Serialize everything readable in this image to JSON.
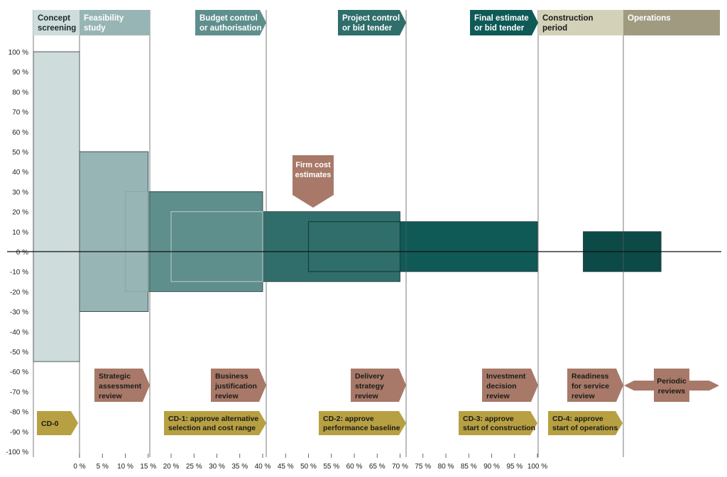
{
  "phases": [
    {
      "label": [
        "Concept",
        "screening"
      ],
      "color": "#cfdcdc",
      "text_color": "#1a2a2a"
    },
    {
      "label": [
        "Feasibility",
        "study"
      ],
      "color": "#97b5b5",
      "text_color": "#ffffff"
    },
    {
      "label": [
        "Budget control",
        "or authorisation"
      ],
      "color": "#5f8f8c",
      "text_color": "#ffffff"
    },
    {
      "label": [
        "Project control",
        "or bid tender"
      ],
      "color": "#2f6e6b",
      "text_color": "#ffffff"
    },
    {
      "label": [
        "Final estimate",
        "or bid tender"
      ],
      "color": "#0f5a57",
      "text_color": "#ffffff"
    },
    {
      "label": [
        "Construction",
        "period"
      ],
      "color": "#d3d1b8",
      "text_color": "#1a1a1a"
    },
    {
      "label": [
        "Operations"
      ],
      "color": "#a09a80",
      "text_color": "#ffffff"
    }
  ],
  "y_ticks": [
    "100 %",
    "90 %",
    "80 %",
    "70 %",
    "60 %",
    "50 %",
    "40 %",
    "30 %",
    "20 %",
    "10 %",
    "0 %",
    "-10 %",
    "-20 %",
    "-30 %",
    "-40 %",
    "-50 %",
    "-60 %",
    "-70 %",
    "-80 %",
    "-90 %",
    "-100 %"
  ],
  "x_ticks": [
    "0 %",
    "5 %",
    "10 %",
    "15 %",
    "20 %",
    "25 %",
    "30 %",
    "35 %",
    "40 %",
    "45 %",
    "50 %",
    "55 %",
    "60 %",
    "65 %",
    "70 %",
    "75 %",
    "80 %",
    "85 %",
    "90 %",
    "95 %",
    "100 %"
  ],
  "callout": {
    "label": [
      "Firm cost",
      "estimates"
    ],
    "color": "#a87968"
  },
  "reviews": [
    {
      "label": [
        "Strategic",
        "assessment",
        "review"
      ],
      "color": "#a87968"
    },
    {
      "label": [
        "Business",
        "justification",
        "review"
      ],
      "color": "#a87968"
    },
    {
      "label": [
        "Delivery",
        "strategy",
        "review"
      ],
      "color": "#a87968"
    },
    {
      "label": [
        "Investment",
        "decision",
        "review"
      ],
      "color": "#a87968"
    },
    {
      "label": [
        "Readiness",
        "for service",
        "review"
      ],
      "color": "#a87968"
    },
    {
      "label": [
        "Periodic",
        "reviews"
      ],
      "color": "#a87968"
    }
  ],
  "decisions": [
    {
      "label": [
        "CD-0"
      ],
      "color": "#b7a042"
    },
    {
      "label": [
        "CD-1: approve alternative",
        "selection and cost range"
      ],
      "color": "#b7a042"
    },
    {
      "label": [
        "CD-2: approve",
        "performance baseline"
      ],
      "color": "#b7a042"
    },
    {
      "label": [
        "CD-3: approve",
        "start of construction"
      ],
      "color": "#b7a042"
    },
    {
      "label": [
        "CD-4: approve",
        "start of operations"
      ],
      "color": "#b7a042"
    }
  ],
  "ranges": [
    {
      "x": [
        -100,
        0
      ],
      "y": [
        -55,
        100
      ],
      "color": "#cfdcdc"
    },
    {
      "x": [
        0,
        15
      ],
      "y": [
        -30,
        50
      ],
      "color": "#97b5b5"
    },
    {
      "x": [
        15,
        40
      ],
      "y": [
        -20,
        30
      ],
      "color": "#5f8f8c"
    },
    {
      "x": [
        40,
        70
      ],
      "y": [
        -15,
        20
      ],
      "color": "#2f6e6b"
    },
    {
      "x": [
        70,
        100
      ],
      "y": [
        -10,
        15
      ],
      "color": "#0f5a57"
    },
    {
      "x": [
        110,
        127
      ],
      "y": [
        -10,
        10
      ],
      "color": "#0b4a46"
    }
  ],
  "inner_ranges": [
    {
      "x": [
        10,
        15
      ],
      "y": [
        -20,
        30
      ],
      "color": "#8aa8a5"
    },
    {
      "x": [
        20,
        40
      ],
      "y": [
        -15,
        20
      ],
      "color": "#a8c4c0"
    },
    {
      "x": [
        50,
        70
      ],
      "y": [
        -10,
        15
      ],
      "color": "#153d3b"
    }
  ]
}
